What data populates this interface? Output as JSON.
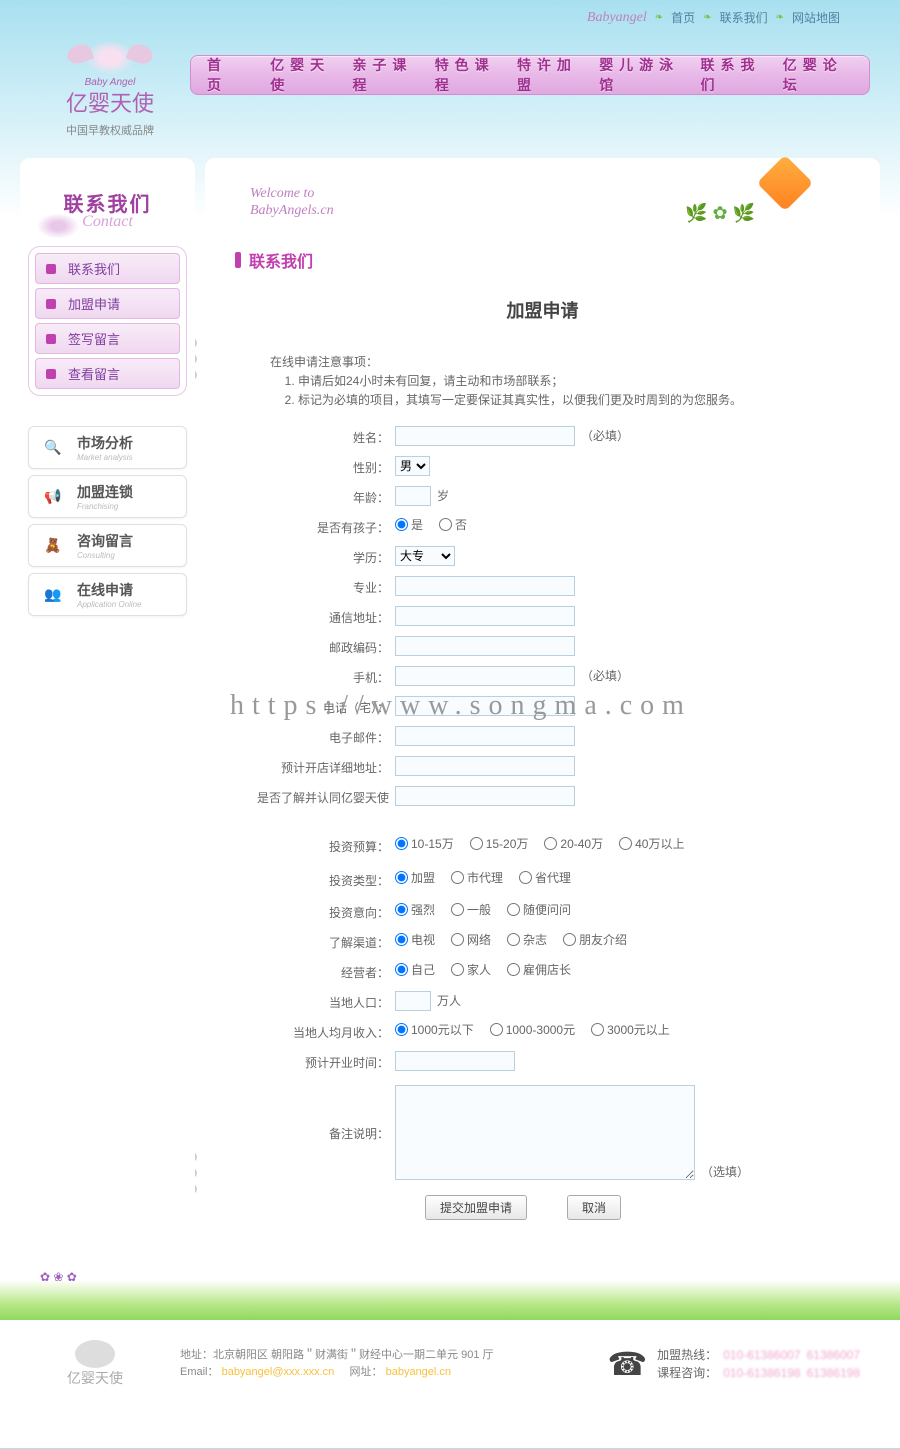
{
  "brand": {
    "script": "Babyangel",
    "top_links": [
      "首页",
      "联系我们",
      "网站地图"
    ],
    "logo_top": "Baby Angel",
    "logo_main": "亿婴天使",
    "logo_sub": "中国早教权威品牌"
  },
  "nav": [
    "首　页",
    "亿婴天使",
    "亲子课程",
    "特色课程",
    "特许加盟",
    "婴儿游泳馆",
    "联系我们",
    "亿婴论坛"
  ],
  "sidebar": {
    "title_cn": "联系我们",
    "title_en": "Contact",
    "menu": [
      "联系我们",
      "加盟申请",
      "签写留言",
      "查看留言"
    ],
    "banners": [
      {
        "cn": "市场分析",
        "en": "Market analysis",
        "icon": "🔍",
        "color": "#4080e0"
      },
      {
        "cn": "加盟连锁",
        "en": "Franchising",
        "icon": "📢",
        "color": "#60c040"
      },
      {
        "cn": "咨询留言",
        "en": "Consulting",
        "icon": "🧸",
        "color": "#f0a040"
      },
      {
        "cn": "在线申请",
        "en": "Application Online",
        "icon": "👥",
        "color": "#e0c040"
      }
    ]
  },
  "main": {
    "welcome_line1": "Welcome to",
    "welcome_line2": "BabyAngels.cn",
    "page_heading": "联系我们",
    "form_title": "加盟申请",
    "notes_title": "在线申请注意事项：",
    "notes": [
      "申请后如24小时未有回复，请主动和市场部联系；",
      "标记为必填的项目，其填写一定要保证其真实性，以便我们更及时周到的为您服务。"
    ],
    "labels": {
      "name": "姓名：",
      "name_hint": "（必填）",
      "gender": "性别：",
      "gender_opts": [
        "男"
      ],
      "age": "年龄：",
      "age_unit": "岁",
      "has_child": "是否有孩子：",
      "child_yes": "是",
      "child_no": "否",
      "edu": "学历：",
      "edu_opts": [
        "大专"
      ],
      "major": "专业：",
      "addr": "通信地址：",
      "zip": "邮政编码：",
      "mobile": "手机：",
      "mobile_hint": "（必填）",
      "tel": "电话（宅）：",
      "email": "电子邮件：",
      "store_addr": "预计开店详细地址：",
      "know": "是否了解并认同亿婴天使",
      "budget": "投资预算：",
      "budget_opts": [
        "10-15万",
        "15-20万",
        "20-40万",
        "40万以上"
      ],
      "type": "投资类型：",
      "type_opts": [
        "加盟",
        "市代理",
        "省代理"
      ],
      "intent": "投资意向：",
      "intent_opts": [
        "强烈",
        "一般",
        "随便问问"
      ],
      "channel": "了解渠道：",
      "channel_opts": [
        "电视",
        "网络",
        "杂志",
        "朋友介绍"
      ],
      "operator": "经营者：",
      "operator_opts": [
        "自己",
        "家人",
        "雇佣店长"
      ],
      "pop": "当地人口：",
      "pop_unit": "万人",
      "income": "当地人均月收入：",
      "income_opts": [
        "1000元以下",
        "1000-3000元",
        "3000元以上"
      ],
      "open_date": "预计开业时间：",
      "remark": "备注说明：",
      "remark_hint": "（选填）",
      "submit": "提交加盟申请",
      "cancel": "取消"
    }
  },
  "footer": {
    "addr": "地址：北京朝阳区 朝阳路＂财满街＂财经中心一期二单元 901 厅",
    "email_label": "Email：",
    "email_val": "babyangel@xxx.xxx.cn",
    "site_label": "网址：",
    "site_val": "babyangel.cn",
    "hotline_label": "加盟热线：",
    "course_label": "课程咨询：",
    "num1": "010-61386007",
    "num2": "61386007",
    "num3": "010-61386198",
    "num4": "61386198"
  },
  "watermark": "https://www.songma.com"
}
